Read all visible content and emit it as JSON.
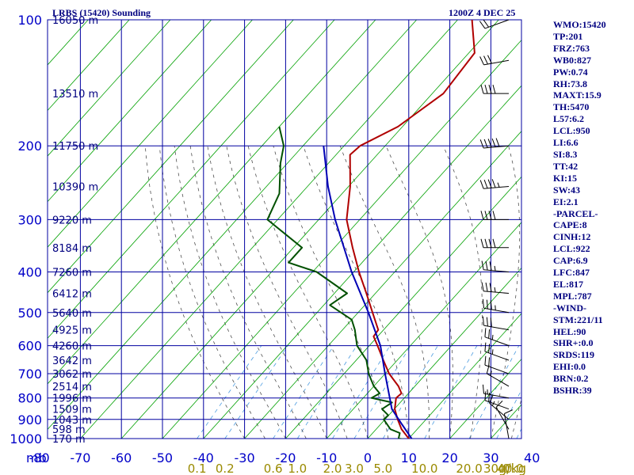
{
  "header": {
    "station_title": "LRBS (15420) Sounding",
    "valid_time": "1200Z  4 DEC 25"
  },
  "indices": [
    "WMO:15420",
    "TP:201",
    "FRZ:763",
    "WB0:827",
    "PW:0.74",
    "RH:73.8",
    "MAXT:15.9",
    "TH:5470",
    "L57:6.2",
    "LCL:950",
    "LI:6.6",
    "SI:8.3",
    "TT:42",
    "KI:15",
    "SW:43",
    "EI:2.1",
    "-PARCEL-",
    "CAPE:8",
    "CINH:12",
    "LCL:922",
    "CAP:6.9",
    "LFC:847",
    "EL:817",
    "MPL:787",
    "-WIND-",
    "STM:221/11",
    "HEL:90",
    "SHR+:0.0",
    "SRDS:119",
    "EHI:0.0",
    "BRN:0.2",
    "BSHR:39"
  ],
  "chart_data": {
    "type": "line",
    "chart_kind": "skew-T log-P sounding",
    "pressure_axis": {
      "unit_label": "mb",
      "ticks": [
        100,
        200,
        300,
        400,
        500,
        600,
        700,
        800,
        900,
        1000
      ],
      "range": [
        100,
        1000
      ],
      "scale": "log"
    },
    "temperature_axis": {
      "ticks": [
        "-80",
        "-70",
        "-60",
        "-50",
        "-40",
        "-30",
        "-20",
        "-10",
        "0",
        "10",
        "20",
        "30",
        "40"
      ],
      "skew": "isotherms slanted toward upper right"
    },
    "mixing_ratio_labels": [
      "0.1",
      "0.2",
      "0.6",
      "1.0",
      "2.0",
      "3.0",
      "5.0",
      "10.0",
      "20.0",
      "30.0",
      "40.0"
    ],
    "mixing_ratio_unit": "g/kg",
    "height_labels": [
      {
        "p": 100,
        "label": "16050 m"
      },
      {
        "p": 150,
        "label": "13510 m"
      },
      {
        "p": 200,
        "label": "11750 m"
      },
      {
        "p": 250,
        "label": "10390 m"
      },
      {
        "p": 300,
        "label": "9220 m"
      },
      {
        "p": 350,
        "label": "8184 m"
      },
      {
        "p": 400,
        "label": "7260 m"
      },
      {
        "p": 450,
        "label": "6412 m"
      },
      {
        "p": 500,
        "label": "5640 m"
      },
      {
        "p": 550,
        "label": "4925 m"
      },
      {
        "p": 600,
        "label": "4260 m"
      },
      {
        "p": 650,
        "label": "3642 m"
      },
      {
        "p": 700,
        "label": "3062 m"
      },
      {
        "p": 750,
        "label": "2514 m"
      },
      {
        "p": 800,
        "label": "1996 m"
      },
      {
        "p": 850,
        "label": "1509 m"
      },
      {
        "p": 900,
        "label": "1043 m"
      },
      {
        "p": 950,
        "label": "598 m"
      },
      {
        "p": 1000,
        "label": "170 m"
      }
    ],
    "series": [
      {
        "kind": "temperature",
        "color": "#b00000",
        "points": [
          [
            1010,
            11.4
          ],
          [
            1000,
            10
          ],
          [
            950,
            6.2
          ],
          [
            900,
            3.1
          ],
          [
            850,
            0.1
          ],
          [
            800,
            -2.0
          ],
          [
            780,
            -1.7
          ],
          [
            750,
            -4.0
          ],
          [
            700,
            -9.0
          ],
          [
            650,
            -13.4
          ],
          [
            600,
            -18.0
          ],
          [
            570,
            -21.0
          ],
          [
            550,
            -21.3
          ],
          [
            500,
            -26.5
          ],
          [
            450,
            -32.2
          ],
          [
            400,
            -38.7
          ],
          [
            350,
            -45.6
          ],
          [
            300,
            -53.2
          ],
          [
            250,
            -59.6
          ],
          [
            210,
            -66.6
          ],
          [
            200,
            -66.1
          ],
          [
            180,
            -61.1
          ],
          [
            150,
            -57.3
          ],
          [
            120,
            -58.6
          ],
          [
            100,
            -66.5
          ]
        ]
      },
      {
        "kind": "dewpoint",
        "color": "#005000",
        "points": [
          [
            1010,
            11.4
          ],
          [
            1000,
            7.5
          ],
          [
            970,
            6.6
          ],
          [
            950,
            3.5
          ],
          [
            900,
            -0.3
          ],
          [
            880,
            -0.1
          ],
          [
            850,
            -3.0
          ],
          [
            820,
            -2.0
          ],
          [
            800,
            -8.0
          ],
          [
            780,
            -7.0
          ],
          [
            750,
            -10.0
          ],
          [
            700,
            -14.0
          ],
          [
            650,
            -17.5
          ],
          [
            600,
            -23.0
          ],
          [
            550,
            -27.0
          ],
          [
            520,
            -30.0
          ],
          [
            480,
            -38.5
          ],
          [
            450,
            -36.9
          ],
          [
            400,
            -49.0
          ],
          [
            380,
            -57.9
          ],
          [
            350,
            -57.9
          ],
          [
            300,
            -72.5
          ],
          [
            260,
            -75.3
          ],
          [
            220,
            -81.7
          ],
          [
            200,
            -84.7
          ],
          [
            180,
            -90.0
          ]
        ]
      },
      {
        "kind": "parcel",
        "color": "#0000b4",
        "points": [
          [
            1010,
            11.4
          ],
          [
            922,
            5.0
          ],
          [
            850,
            -0.6
          ],
          [
            700,
            -10.0
          ],
          [
            600,
            -17.3
          ],
          [
            500,
            -27.5
          ],
          [
            400,
            -40.5
          ],
          [
            300,
            -56.0
          ],
          [
            250,
            -65.0
          ],
          [
            200,
            -75.0
          ]
        ]
      }
    ],
    "wind_barbs": [
      {
        "p": 1000,
        "dir": 350,
        "spd": 10
      },
      {
        "p": 950,
        "dir": 330,
        "spd": 10
      },
      {
        "p": 900,
        "dir": 310,
        "spd": 15
      },
      {
        "p": 850,
        "dir": 290,
        "spd": 20
      },
      {
        "p": 800,
        "dir": 280,
        "spd": 15
      },
      {
        "p": 750,
        "dir": 300,
        "spd": 15
      },
      {
        "p": 700,
        "dir": 290,
        "spd": 20
      },
      {
        "p": 650,
        "dir": 290,
        "spd": 25
      },
      {
        "p": 600,
        "dir": 290,
        "spd": 25
      },
      {
        "p": 550,
        "dir": 280,
        "spd": 30
      },
      {
        "p": 500,
        "dir": 280,
        "spd": 35
      },
      {
        "p": 450,
        "dir": 275,
        "spd": 35
      },
      {
        "p": 400,
        "dir": 275,
        "spd": 35
      },
      {
        "p": 350,
        "dir": 270,
        "spd": 40
      },
      {
        "p": 300,
        "dir": 270,
        "spd": 40
      },
      {
        "p": 250,
        "dir": 265,
        "spd": 45
      },
      {
        "p": 200,
        "dir": 265,
        "spd": 50
      },
      {
        "p": 150,
        "dir": 270,
        "spd": 40
      },
      {
        "p": 125,
        "dir": 260,
        "spd": 30
      },
      {
        "p": 100,
        "dir": 250,
        "spd": 20
      }
    ],
    "grid": true
  }
}
